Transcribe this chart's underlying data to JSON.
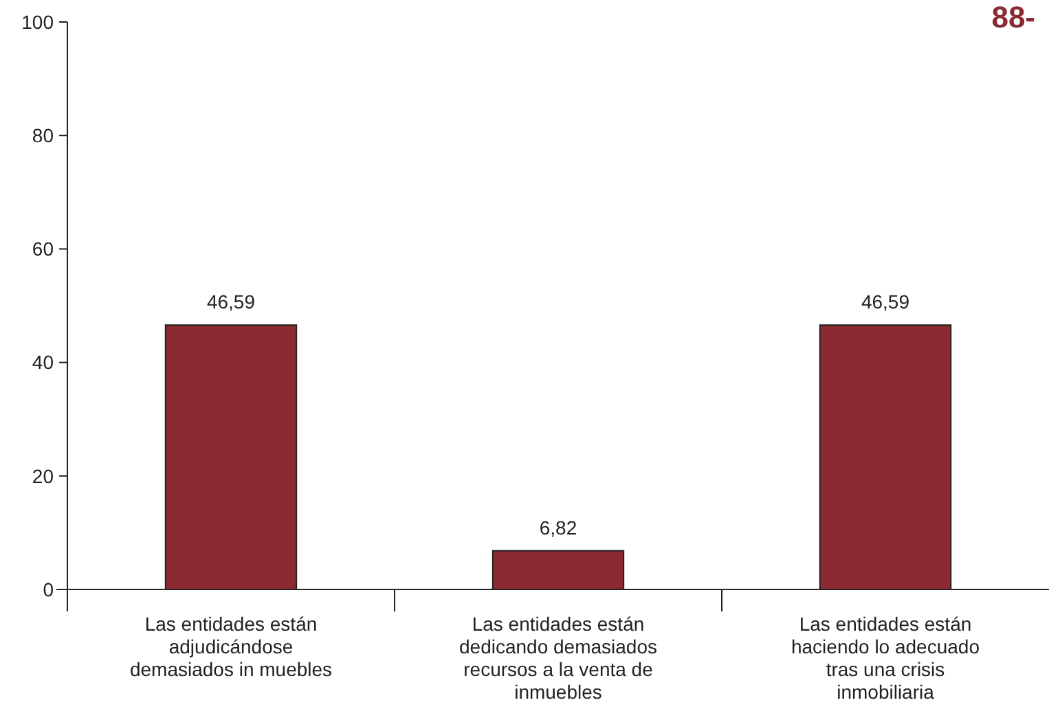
{
  "chart_data": {
    "type": "bar",
    "categories": [
      "Las entidades están adjudicándose demasiados in muebles",
      "Las entidades están dedicando demasiados recursos a la venta de inmuebles",
      "Las entidades están haciendo lo adecuado tras una crisis inmobiliaria"
    ],
    "values": [
      46.59,
      6.82,
      46.59
    ],
    "value_labels": [
      "46,59",
      "6,82",
      "46,59"
    ],
    "color": "#8b2a30",
    "ylim": [
      0,
      100
    ],
    "yticks": [
      0,
      20,
      40,
      60,
      80,
      100
    ],
    "grid": false,
    "annotations": [
      "88-"
    ]
  }
}
